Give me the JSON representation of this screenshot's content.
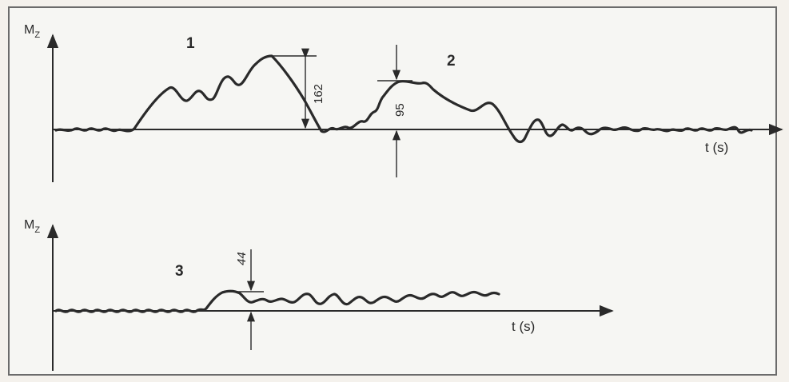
{
  "diagram": {
    "top": {
      "y_label": "M",
      "y_label_sub": "Z",
      "x_label": "t (s)",
      "curve_labels": [
        "1",
        "2"
      ],
      "dimensions": [
        {
          "label": "162"
        },
        {
          "label": "95"
        }
      ]
    },
    "bottom": {
      "y_label": "M",
      "y_label_sub": "Z",
      "x_label": "t (s)",
      "curve_labels": [
        "3"
      ],
      "dimensions": [
        {
          "label": "44"
        }
      ]
    },
    "colors": {
      "line": "#2a2a2a",
      "background": "#f6f6f3",
      "frame": "#6b6b6b"
    }
  }
}
